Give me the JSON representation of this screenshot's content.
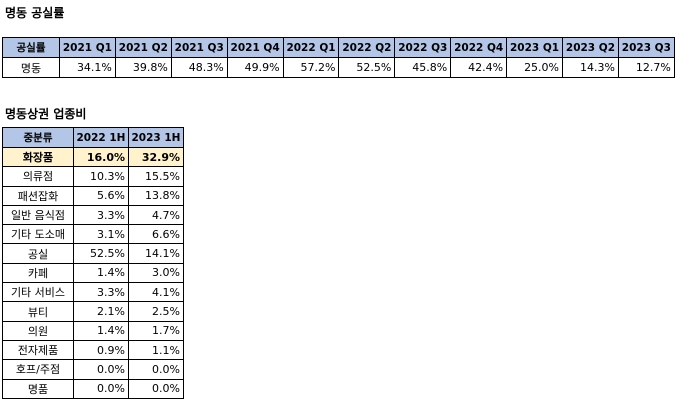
{
  "section1": {
    "title": "명동 공실률",
    "header_label": "공실률",
    "columns": [
      "2021 Q1",
      "2021 Q2",
      "2021 Q3",
      "2021 Q4",
      "2022 Q1",
      "2022 Q2",
      "2022 Q3",
      "2022 Q4",
      "2023 Q1",
      "2023 Q2",
      "2023 Q3"
    ],
    "row_label": "명동",
    "values": [
      "34.1%",
      "39.8%",
      "48.3%",
      "49.9%",
      "57.2%",
      "52.5%",
      "45.8%",
      "42.4%",
      "25.0%",
      "14.3%",
      "12.7%"
    ]
  },
  "section2": {
    "title": "명동상권 업종비",
    "header_label": "중분류",
    "columns": [
      "2022 1H",
      "2023 1H"
    ],
    "rows": [
      {
        "label": "화장품",
        "v1": "16.0%",
        "v2": "32.9%"
      },
      {
        "label": "의류점",
        "v1": "10.3%",
        "v2": "15.5%"
      },
      {
        "label": "패션잡화",
        "v1": "5.6%",
        "v2": "13.8%"
      },
      {
        "label": "일반 음식점",
        "v1": "3.3%",
        "v2": "4.7%"
      },
      {
        "label": "기타 도소매",
        "v1": "3.1%",
        "v2": "6.6%"
      },
      {
        "label": "공실",
        "v1": "52.5%",
        "v2": "14.1%"
      },
      {
        "label": "카페",
        "v1": "1.4%",
        "v2": "3.0%"
      },
      {
        "label": "기타 서비스",
        "v1": "3.3%",
        "v2": "4.1%"
      },
      {
        "label": "뷰티",
        "v1": "2.1%",
        "v2": "2.5%"
      },
      {
        "label": "의원",
        "v1": "1.4%",
        "v2": "1.7%"
      },
      {
        "label": "전자제품",
        "v1": "0.9%",
        "v2": "1.1%"
      },
      {
        "label": "호프/주점",
        "v1": "0.0%",
        "v2": "0.0%"
      },
      {
        "label": "명품",
        "v1": "0.0%",
        "v2": "0.0%"
      }
    ]
  },
  "colors": {
    "header_bg": "#b4c6e7",
    "highlight_bg": "#fff2cc"
  }
}
